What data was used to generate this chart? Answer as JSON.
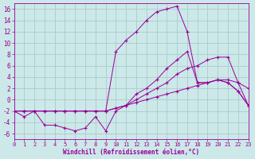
{
  "background_color": "#cce8e8",
  "grid_color": "#aacccc",
  "line_color": "#990099",
  "xlabel": "Windchill (Refroidissement éolien,°C)",
  "xlim": [
    0,
    23
  ],
  "ylim": [
    -7,
    17
  ],
  "yticks": [
    -6,
    -4,
    -2,
    0,
    2,
    4,
    6,
    8,
    10,
    12,
    14,
    16
  ],
  "xticks": [
    0,
    1,
    2,
    3,
    4,
    5,
    6,
    7,
    8,
    9,
    10,
    11,
    12,
    13,
    14,
    15,
    16,
    17,
    18,
    19,
    20,
    21,
    22,
    23
  ],
  "lines": [
    {
      "x": [
        0,
        1,
        2,
        3,
        4,
        5,
        6,
        7,
        8,
        9,
        10,
        11,
        12,
        13,
        14,
        15,
        16,
        17,
        18,
        19,
        20,
        21,
        22,
        23
      ],
      "y": [
        -2,
        -3,
        -2,
        -2,
        -2,
        -2,
        -2,
        -2,
        -2,
        -2,
        8.5,
        10.5,
        12,
        14,
        15.5,
        16,
        16.5,
        12,
        3,
        3,
        3.5,
        3,
        1.5,
        -1
      ]
    },
    {
      "x": [
        0,
        1,
        2,
        3,
        4,
        5,
        6,
        7,
        8,
        9,
        10,
        11,
        12,
        13,
        14,
        15,
        16,
        17,
        18,
        19,
        20,
        21,
        22,
        23
      ],
      "y": [
        -2,
        -2,
        -2,
        -4.5,
        -4.5,
        -5,
        -5.5,
        -5,
        -3,
        -5.5,
        -2,
        -1,
        1,
        2,
        3.5,
        5.5,
        7,
        8.5,
        3,
        3,
        3.5,
        3,
        1.5,
        -1
      ]
    },
    {
      "x": [
        0,
        1,
        2,
        3,
        4,
        5,
        6,
        7,
        8,
        9,
        10,
        11,
        12,
        13,
        14,
        15,
        16,
        17,
        18,
        19,
        20,
        21,
        22,
        23
      ],
      "y": [
        -2,
        -2,
        -2,
        -2,
        -2,
        -2,
        -2,
        -2,
        -2,
        -2,
        -1.5,
        -1,
        0,
        1,
        2,
        3,
        4.5,
        5.5,
        6,
        7,
        7.5,
        7.5,
        3,
        2
      ]
    },
    {
      "x": [
        0,
        1,
        2,
        3,
        4,
        5,
        6,
        7,
        8,
        9,
        10,
        11,
        12,
        13,
        14,
        15,
        16,
        17,
        18,
        19,
        20,
        21,
        22,
        23
      ],
      "y": [
        -2,
        -2,
        -2,
        -2,
        -2,
        -2,
        -2,
        -2,
        -2,
        -2,
        -1.5,
        -1,
        -0.5,
        0,
        0.5,
        1,
        1.5,
        2,
        2.5,
        3,
        3.5,
        3.5,
        3,
        -1
      ]
    }
  ]
}
